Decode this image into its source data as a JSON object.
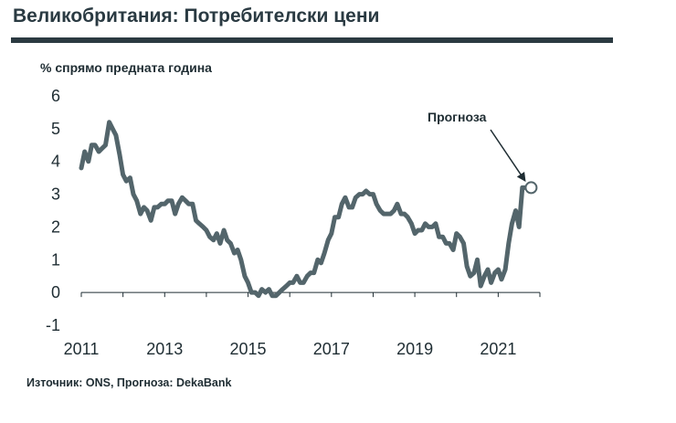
{
  "header": {
    "title": "Великобритания: Потребителски цени"
  },
  "source": "Източник: ONS, Прогноза: DekaBank",
  "colors": {
    "line": "#53656b",
    "header_rule": "#2b3a41",
    "axis": "#1f2d33",
    "marker_fill": "#ffffff"
  },
  "chart_data": {
    "type": "line",
    "ylabel": "% спрямо предната година",
    "ylim": [
      -1,
      6
    ],
    "yticks": [
      "6",
      "5",
      "4",
      "3",
      "2",
      "1",
      "0",
      "-1"
    ],
    "xlim": [
      2011,
      2022
    ],
    "xticks": [
      "2011",
      "2013",
      "2015",
      "2017",
      "2019",
      "2021"
    ],
    "grid": false,
    "annotation": {
      "text": "Прогноза",
      "x": 2021.79,
      "y": 3.2
    },
    "series": [
      {
        "x": [
          2011.0,
          2011.08,
          2011.17,
          2011.25,
          2011.33,
          2011.42,
          2011.5,
          2011.58,
          2011.67,
          2011.75,
          2011.83,
          2011.92,
          2012.0,
          2012.08,
          2012.17,
          2012.25,
          2012.33,
          2012.42,
          2012.5,
          2012.58,
          2012.67,
          2012.75,
          2012.83,
          2012.92,
          2013.0,
          2013.08,
          2013.17,
          2013.25,
          2013.33,
          2013.42,
          2013.5,
          2013.58,
          2013.67,
          2013.75,
          2013.83,
          2013.92,
          2014.0,
          2014.08,
          2014.17,
          2014.25,
          2014.33,
          2014.42,
          2014.5,
          2014.58,
          2014.67,
          2014.75,
          2014.83,
          2014.92,
          2015.0,
          2015.08,
          2015.17,
          2015.25,
          2015.33,
          2015.42,
          2015.5,
          2015.58,
          2015.67,
          2015.75,
          2015.83,
          2015.92,
          2016.0,
          2016.08,
          2016.17,
          2016.25,
          2016.33,
          2016.42,
          2016.5,
          2016.58,
          2016.67,
          2016.75,
          2016.83,
          2016.92,
          2017.0,
          2017.08,
          2017.17,
          2017.25,
          2017.33,
          2017.42,
          2017.5,
          2017.58,
          2017.67,
          2017.75,
          2017.83,
          2017.92,
          2018.0,
          2018.08,
          2018.17,
          2018.25,
          2018.33,
          2018.42,
          2018.5,
          2018.58,
          2018.67,
          2018.75,
          2018.83,
          2018.92,
          2019.0,
          2019.08,
          2019.17,
          2019.25,
          2019.33,
          2019.42,
          2019.5,
          2019.58,
          2019.67,
          2019.75,
          2019.83,
          2019.92,
          2020.0,
          2020.08,
          2020.17,
          2020.25,
          2020.33,
          2020.42,
          2020.5,
          2020.58,
          2020.67,
          2020.75,
          2020.83,
          2020.92,
          2021.0,
          2021.08,
          2021.17,
          2021.25,
          2021.33,
          2021.42,
          2021.5,
          2021.58,
          2021.67,
          2021.75
        ],
        "values": [
          3.8,
          4.3,
          4.0,
          4.5,
          4.5,
          4.3,
          4.4,
          4.5,
          5.2,
          5.0,
          4.8,
          4.2,
          3.6,
          3.4,
          3.5,
          3.0,
          2.8,
          2.4,
          2.6,
          2.5,
          2.2,
          2.6,
          2.6,
          2.7,
          2.7,
          2.8,
          2.8,
          2.4,
          2.7,
          2.9,
          2.8,
          2.7,
          2.7,
          2.2,
          2.1,
          2.0,
          1.9,
          1.7,
          1.6,
          1.8,
          1.5,
          1.9,
          1.6,
          1.5,
          1.2,
          1.3,
          1.0,
          0.5,
          0.3,
          0.0,
          0.0,
          -0.1,
          0.1,
          0.0,
          0.1,
          -0.1,
          -0.1,
          0.0,
          0.1,
          0.2,
          0.3,
          0.3,
          0.5,
          0.3,
          0.3,
          0.5,
          0.6,
          0.6,
          1.0,
          0.9,
          1.2,
          1.6,
          1.8,
          2.3,
          2.3,
          2.7,
          2.9,
          2.6,
          2.6,
          2.9,
          3.0,
          3.0,
          3.1,
          3.0,
          3.0,
          2.7,
          2.5,
          2.4,
          2.4,
          2.4,
          2.5,
          2.7,
          2.4,
          2.4,
          2.3,
          2.1,
          1.8,
          1.9,
          1.9,
          2.1,
          2.0,
          2.0,
          2.1,
          1.7,
          1.7,
          1.5,
          1.5,
          1.3,
          1.8,
          1.7,
          1.5,
          0.8,
          0.5,
          0.6,
          1.0,
          0.2,
          0.5,
          0.7,
          0.3,
          0.6,
          0.7,
          0.4,
          0.7,
          1.5,
          2.1,
          2.5,
          2.0,
          3.2,
          3.2,
          3.2
        ]
      }
    ]
  }
}
